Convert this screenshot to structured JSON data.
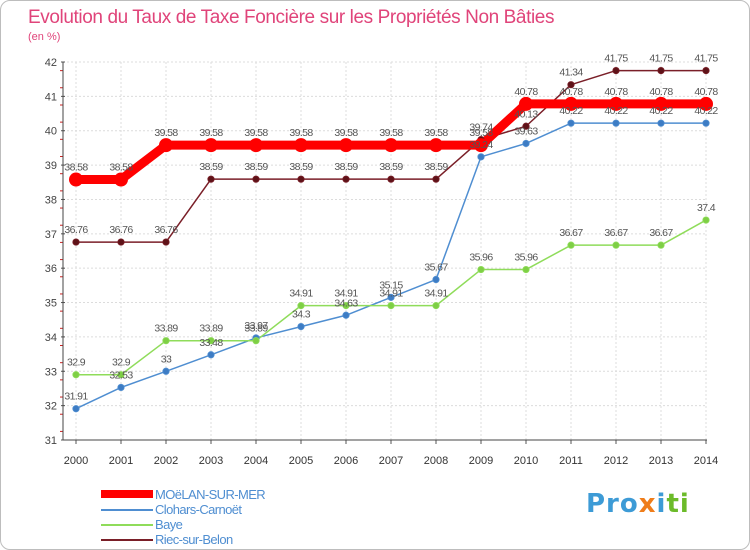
{
  "title": "Evolution du Taux de Taxe Foncière sur les Propriétés Non Bâties",
  "unit_label": "(en %)",
  "brand": {
    "text": "Proxiti",
    "parts": [
      "Pro",
      "x",
      "i",
      "ti"
    ]
  },
  "chart_data": {
    "type": "line",
    "title": "Evolution du Taux de Taxe Foncière sur les Propriétés Non Bâties",
    "ylabel": "(en %)",
    "xlabel": "",
    "x": [
      "2000",
      "2001",
      "2002",
      "2003",
      "2004",
      "2005",
      "2006",
      "2007",
      "2008",
      "2009",
      "2010",
      "2011",
      "2012",
      "2013",
      "2014"
    ],
    "ylim": [
      31,
      42
    ],
    "yticks": [
      "31",
      "32",
      "33",
      "34",
      "35",
      "36",
      "37",
      "38",
      "39",
      "40",
      "41",
      "42"
    ],
    "grid": true,
    "series": [
      {
        "name": "MOëLAN-SUR-MER",
        "color": "#ff0000",
        "values": [
          38.58,
          38.58,
          39.58,
          39.58,
          39.58,
          39.58,
          39.58,
          39.58,
          39.58,
          39.58,
          40.78,
          40.78,
          40.78,
          40.78,
          40.78
        ],
        "labels": [
          "38.58",
          "38.58",
          "39.58",
          "39.58",
          "39.58",
          "39.58",
          "39.58",
          "39.58",
          "39.58",
          "39.58",
          "40.78",
          "40.78",
          "40.78",
          "40.78",
          "40.78"
        ]
      },
      {
        "name": "Clohars-Carnoët",
        "color": "#4f8ed1",
        "values": [
          31.91,
          32.53,
          33,
          33.48,
          33.97,
          34.3,
          34.63,
          35.15,
          35.67,
          39.24,
          39.63,
          40.22,
          40.22,
          40.22,
          40.22
        ],
        "labels": [
          "31.91",
          "32.53",
          "33",
          "33.48",
          "33.97",
          "34.3",
          "34.63",
          "35.15",
          "35.67",
          "39.24",
          "39.63",
          "40.22",
          "40.22",
          "40.22",
          "40.22"
        ]
      },
      {
        "name": "Baye",
        "color": "#8fdc5a",
        "values": [
          32.9,
          32.9,
          33.89,
          33.89,
          33.89,
          34.91,
          34.91,
          34.91,
          34.91,
          35.96,
          35.96,
          36.67,
          36.67,
          36.67,
          37.4
        ],
        "labels": [
          "32.9",
          "32.9",
          "33.89",
          "33.89",
          "33.89",
          "34.91",
          "34.91",
          "34.91",
          "34.91",
          "35.96",
          "35.96",
          "36.67",
          "36.67",
          "36.67",
          "37.4"
        ]
      },
      {
        "name": "Riec-sur-Belon",
        "color": "#7a1f28",
        "values": [
          36.76,
          36.76,
          36.76,
          38.59,
          38.59,
          38.59,
          38.59,
          38.59,
          38.59,
          39.74,
          40.13,
          41.34,
          41.75,
          41.75,
          41.75
        ],
        "labels": [
          "36.76",
          "36.76",
          "36.76",
          "38.59",
          "38.59",
          "38.59",
          "38.59",
          "38.59",
          "38.59",
          "39.74",
          "40.13",
          "41.34",
          "41.75",
          "41.75",
          "41.75"
        ]
      }
    ],
    "legend_position": "bottom-left"
  }
}
